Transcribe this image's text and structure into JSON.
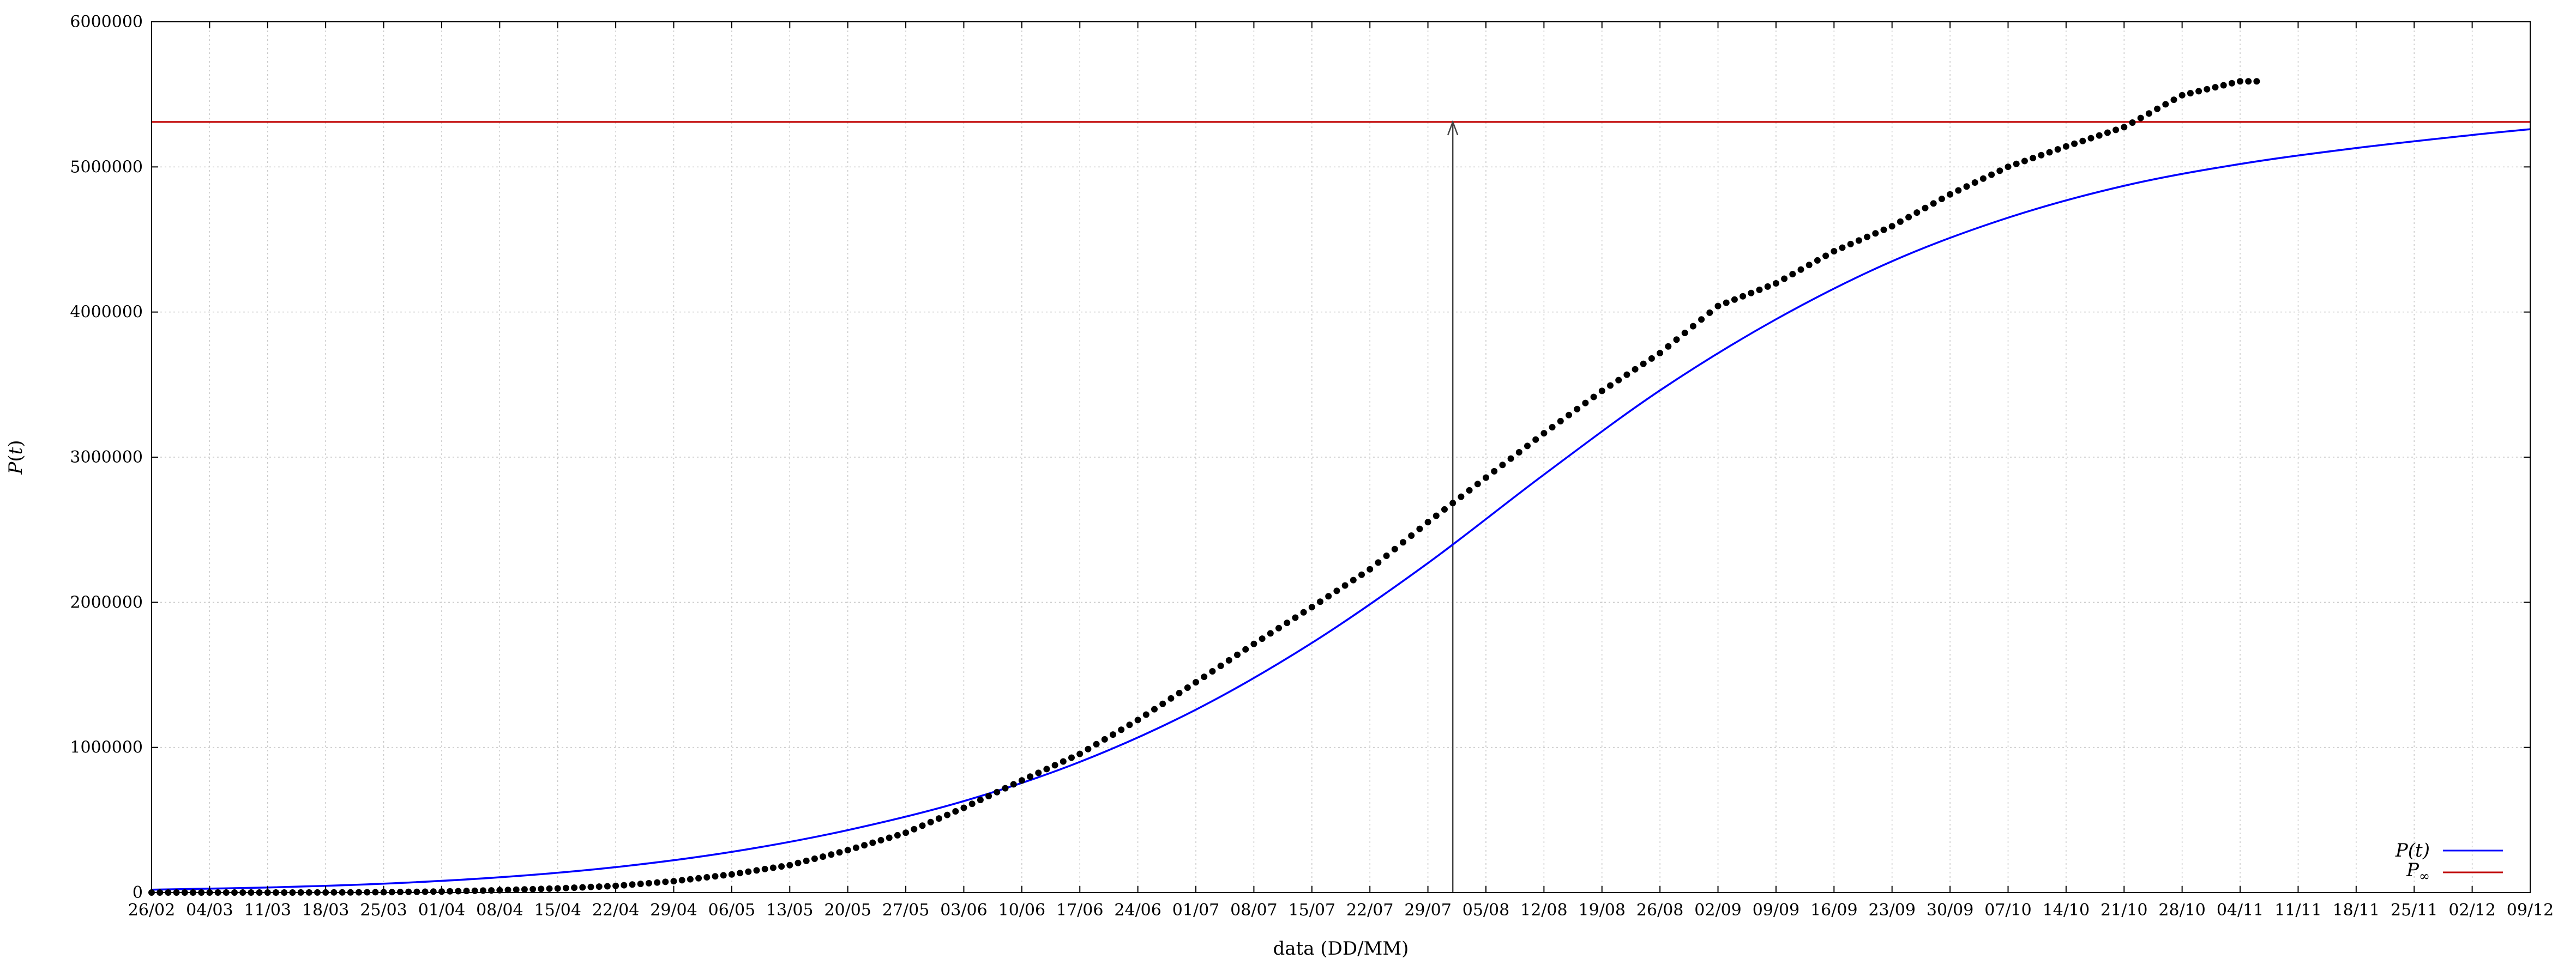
{
  "chart_data": {
    "type": "scatter",
    "title": "",
    "xlabel": "data (DD/MM)",
    "ylabel": "P(t)",
    "x_unit": "date",
    "xlim": [
      "2020-02-26",
      "2020-12-09"
    ],
    "ylim": [
      0,
      6000000
    ],
    "grid": true,
    "legend_position": "bottom-right",
    "x_ticks": [
      "26/02",
      "04/03",
      "11/03",
      "18/03",
      "25/03",
      "01/04",
      "08/04",
      "15/04",
      "22/04",
      "29/04",
      "06/05",
      "13/05",
      "20/05",
      "27/05",
      "03/06",
      "10/06",
      "17/06",
      "24/06",
      "01/07",
      "08/07",
      "15/07",
      "22/07",
      "29/07",
      "05/08",
      "12/08",
      "19/08",
      "26/08",
      "02/09",
      "09/09",
      "16/09",
      "23/09",
      "30/09",
      "07/10",
      "14/10",
      "21/10",
      "28/10",
      "04/11",
      "11/11",
      "18/11",
      "25/11",
      "02/12",
      "09/12"
    ],
    "y_ticks": [
      "0",
      "1000000",
      "2000000",
      "3000000",
      "4000000",
      "5000000",
      "6000000"
    ],
    "series": [
      {
        "name": "",
        "kind": "points",
        "color": "#000000",
        "x": [
          "2020-02-26",
          "2020-03-04",
          "2020-03-11",
          "2020-03-18",
          "2020-03-25",
          "2020-04-01",
          "2020-04-08",
          "2020-04-15",
          "2020-04-22",
          "2020-04-29",
          "2020-05-06",
          "2020-05-13",
          "2020-05-20",
          "2020-05-27",
          "2020-06-03",
          "2020-06-10",
          "2020-06-17",
          "2020-06-24",
          "2020-07-01",
          "2020-07-08",
          "2020-07-15",
          "2020-07-22",
          "2020-07-29",
          "2020-08-05",
          "2020-08-12",
          "2020-08-19",
          "2020-08-26",
          "2020-09-02",
          "2020-09-09",
          "2020-09-16",
          "2020-09-23",
          "2020-09-30",
          "2020-10-07",
          "2020-10-14",
          "2020-10-21",
          "2020-10-28",
          "2020-11-04",
          "2020-11-06"
        ],
        "y": [
          1,
          4,
          52,
          291,
          2433,
          6836,
          15927,
          28320,
          45757,
          78162,
          125218,
          188974,
          291579,
          411821,
          584016,
          772416,
          955377,
          1188631,
          1448753,
          1713160,
          1966748,
          2227514,
          2552265,
          2859073,
          3164785,
          3456652,
          3717156,
          4041638,
          4197889,
          4419083,
          4591364,
          4810935,
          5000694,
          5140863,
          5273954,
          5494376,
          5590025,
          5590025
        ]
      },
      {
        "name": "P(t)",
        "kind": "line",
        "color": "#0000ff",
        "x": [
          "2020-02-26",
          "2020-03-11",
          "2020-03-25",
          "2020-04-08",
          "2020-04-22",
          "2020-05-06",
          "2020-05-20",
          "2020-06-03",
          "2020-06-17",
          "2020-07-01",
          "2020-07-15",
          "2020-07-29",
          "2020-08-12",
          "2020-08-26",
          "2020-09-09",
          "2020-09-23",
          "2020-10-07",
          "2020-10-21",
          "2020-11-04",
          "2020-11-18",
          "2020-12-02",
          "2020-12-09"
        ],
        "y": [
          20000,
          35000,
          61000,
          105000,
          175000,
          280000,
          430000,
          630000,
          900000,
          1260000,
          1720000,
          2270000,
          2880000,
          3460000,
          3950000,
          4350000,
          4650000,
          4870000,
          5020000,
          5130000,
          5220000,
          5260000
        ]
      },
      {
        "name": "P∞",
        "kind": "hline",
        "color": "#c00000",
        "value": 5310000
      }
    ],
    "annotations": [
      {
        "type": "vertical-arrow",
        "x": "2020-08-01",
        "y_from": 0,
        "y_to": 5310000,
        "color": "#444444"
      }
    ]
  },
  "legend": {
    "line_label_main": "P",
    "line_label_suffix": "(t)",
    "hline_label_main": "P",
    "hline_label_sub": "∞"
  },
  "axes": {
    "xlabel": "data (DD/MM)",
    "ylabel": "P(t)"
  }
}
